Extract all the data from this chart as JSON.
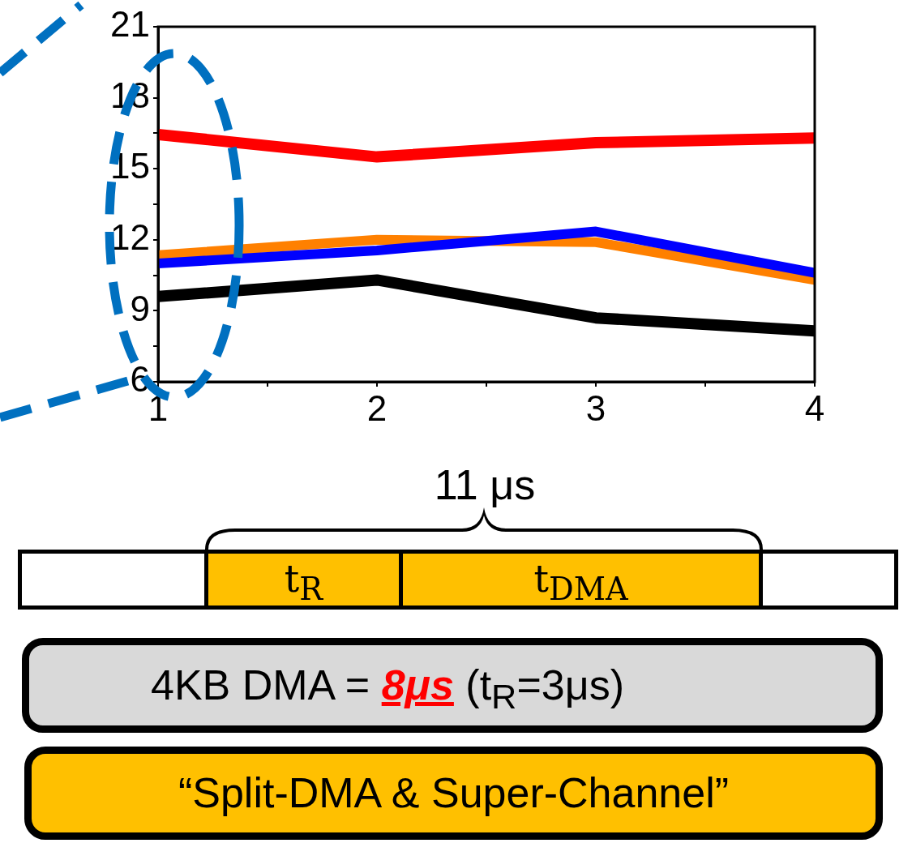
{
  "chart_data": {
    "type": "line",
    "x": [
      1,
      2,
      3,
      4
    ],
    "series": [
      {
        "color": "#ff0000",
        "values": [
          16.45,
          15.5,
          16.1,
          16.3
        ]
      },
      {
        "color": "#ff8000",
        "values": [
          11.35,
          12.0,
          11.9,
          10.3
        ]
      },
      {
        "color": "#0000ff",
        "values": [
          11.0,
          11.55,
          12.35,
          10.6
        ]
      },
      {
        "color": "#000000",
        "values": [
          9.6,
          10.3,
          8.7,
          8.15
        ]
      }
    ],
    "xlim": [
      1,
      4
    ],
    "xticks": [
      1,
      {
        "value": 1.5,
        "label": null
      },
      2,
      {
        "value": 2.5,
        "label": null
      },
      3,
      {
        "value": 3.5,
        "label": null
      },
      4
    ],
    "ylim": [
      6,
      21
    ],
    "yticks": [
      6,
      {
        "value": 7.5,
        "label": null
      },
      9,
      {
        "value": 10.5,
        "label": null
      },
      12,
      {
        "value": 13.5,
        "label": null
      },
      15,
      {
        "value": 16.5,
        "label": null
      },
      18,
      {
        "value": 19.5,
        "label": null
      },
      21
    ],
    "grid": false,
    "legend": false,
    "marker": "none",
    "line_style": "solid",
    "annotations": [
      "11 μs",
      "t$_{R}$",
      "t$_{DMA}$",
      "4KB DMA =",
      "8μs",
      "(t$_{R}$=3μs)",
      "“Split-DMA & Super-Channel”"
    ]
  }
}
